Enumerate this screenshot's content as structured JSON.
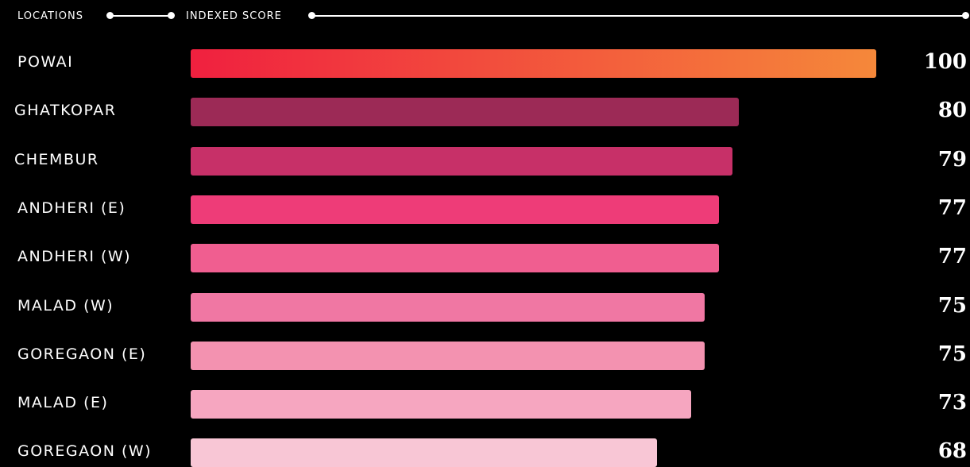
{
  "header": {
    "locations_label": "LOCATIONS",
    "score_label": "INDEXED SCORE"
  },
  "chart_data": {
    "type": "bar",
    "orientation": "horizontal",
    "categories": [
      "POWAI",
      "GHATKOPAR",
      "CHEMBUR",
      "ANDHERI (E)",
      "ANDHERI (W)",
      "MALAD (W)",
      "GOREGAON (E)",
      "MALAD (E)",
      "GOREGAON (W)"
    ],
    "values": [
      100,
      80,
      79,
      77,
      77,
      75,
      75,
      73,
      68
    ],
    "xlim": [
      0,
      100
    ],
    "grid": false,
    "legend": "none",
    "colors": [
      "#f0203f",
      "#9c2a56",
      "#c73068",
      "#ee3c78",
      "#f05e90",
      "#f077a3",
      "#f392b0",
      "#f6a6c0",
      "#f8c6d5"
    ],
    "top_bar_gradient": [
      "#f0203f",
      "#f5883a"
    ]
  }
}
